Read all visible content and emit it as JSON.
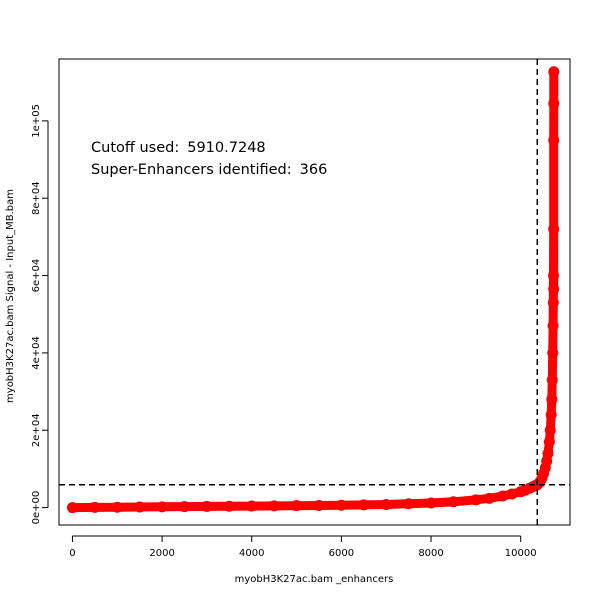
{
  "chart_data": {
    "type": "scatter",
    "xlabel": "myobH3K27ac.bam _enhancers",
    "ylabel": "myobH3K27ac.bam  Signal -  Input_MB.bam",
    "xlim": [
      -300,
      11100
    ],
    "ylim": [
      -4500,
      116000
    ],
    "x_ticks": [
      0,
      2000,
      4000,
      6000,
      8000,
      10000
    ],
    "x_tick_labels": [
      "0",
      "2000",
      "4000",
      "6000",
      "8000",
      "10000"
    ],
    "y_ticks": [
      0,
      20000,
      40000,
      60000,
      80000,
      100000
    ],
    "y_tick_labels": [
      "0e+00",
      "2e+04",
      "4e+04",
      "6e+04",
      "8e+04",
      "1e+05"
    ],
    "annotations": [
      {
        "label": "Cutoff used:",
        "value": "5910.7248"
      },
      {
        "label": "Super-Enhancers identified:",
        "value": "366"
      }
    ],
    "cutoff_y": 5910.7248,
    "cutoff_x": 10370,
    "series_color": "#ff0000",
    "grid": false,
    "series": [
      {
        "x": [
          0,
          500,
          1000,
          1500,
          2000,
          2500,
          3000,
          3500,
          4000,
          4500,
          5000,
          5500,
          6000,
          6500,
          7000,
          7500,
          8000,
          8500,
          9000,
          9300,
          9600,
          9800,
          10000,
          10100,
          10200,
          10270,
          10330,
          10370,
          10420,
          10470,
          10510,
          10550,
          10580,
          10610,
          10640,
          10660,
          10680,
          10695,
          10705,
          10715,
          10722,
          10728,
          10733,
          10736
        ],
        "y": [
          0,
          50,
          100,
          150,
          200,
          250,
          300,
          350,
          400,
          450,
          500,
          550,
          600,
          700,
          800,
          1000,
          1200,
          1500,
          2000,
          2400,
          3000,
          3500,
          4100,
          4500,
          5000,
          5400,
          5700,
          5910,
          6500,
          7500,
          8800,
          10300,
          12000,
          14000,
          17000,
          20000,
          24000,
          28000,
          33000,
          40000,
          47000,
          53000,
          60000,
          72000
        ]
      }
    ],
    "top_points": [
      {
        "x": 10736,
        "y": 56500
      },
      {
        "x": 10737,
        "y": 95000
      },
      {
        "x": 10738,
        "y": 104500
      },
      {
        "x": 10739,
        "y": 112700
      }
    ]
  }
}
